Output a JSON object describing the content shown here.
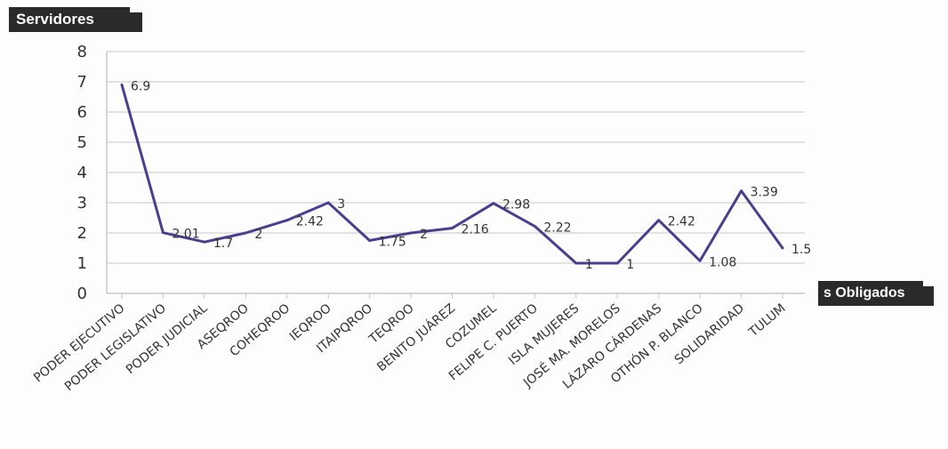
{
  "header": {
    "title": "Servidores",
    "x_title": "s Obligados"
  },
  "colors": {
    "line": "#4a3f8f",
    "grid": "#c8c8c8",
    "tag_bg": "#2a2a2a"
  },
  "chart_data": {
    "type": "line",
    "title": "Servidores",
    "xlabel": "s Obligados",
    "ylabel": "",
    "ylim": [
      0,
      8
    ],
    "yticks": [
      "0",
      "1",
      "2",
      "3",
      "4",
      "5",
      "6",
      "7",
      "8"
    ],
    "grid": true,
    "categories": [
      "PODER EJECUTIVO",
      "PODER LEGISLATIVO",
      "PODER JUDICIAL",
      "ASEQROO",
      "COHEQROO",
      "IEQROO",
      "ITAIPQROO",
      "TEQROO",
      "BENITO JUÁREZ",
      "COZUMEL",
      "FELIPE C. PUERTO",
      "ISLA MUJERES",
      "JOSÉ MA. MORELOS",
      "LÁZARO CÁRDENAS",
      "OTHÓN P. BLANCO",
      "SOLIDARIDAD",
      "TULUM"
    ],
    "values": [
      6.9,
      2.01,
      1.7,
      2,
      2.42,
      3,
      1.75,
      2,
      2.16,
      2.98,
      2.22,
      1,
      1,
      2.42,
      1.08,
      3.39,
      1.5
    ],
    "data_labels": [
      "6.9",
      "2.01",
      "1.7",
      "2",
      "2.42",
      "3",
      "1.75",
      "2",
      "2.16",
      "2.98",
      "2.22",
      "1",
      "1",
      "2.42",
      "1.08",
      "3.39",
      "1.5"
    ]
  }
}
